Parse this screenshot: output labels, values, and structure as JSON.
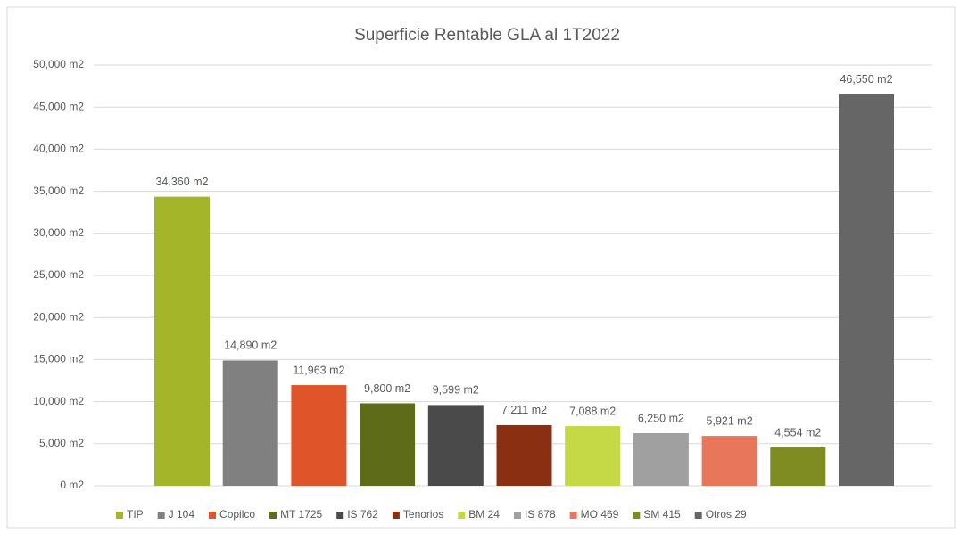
{
  "chart_data": {
    "type": "bar",
    "title": "Superficie Rentable GLA al 1T2022",
    "categories": [
      "TIP",
      "J 104",
      "Copilco",
      "MT 1725",
      "IS 762",
      "Tenorios",
      "BM 24",
      "IS 878",
      "MO 469",
      "SM 415",
      "Otros 29"
    ],
    "values": [
      34360,
      14890,
      11963,
      9800,
      9599,
      7211,
      7088,
      6250,
      5921,
      4554,
      46550
    ],
    "value_labels": [
      "34,360 m2",
      "14,890 m2",
      "11,963 m2",
      "9,800 m2",
      "9,599 m2",
      "7,211 m2",
      "7,088 m2",
      "6,250 m2",
      "5,921 m2",
      "4,554 m2",
      "46,550 m2"
    ],
    "colors": [
      "#a5b52a",
      "#808080",
      "#e0542a",
      "#5e6b18",
      "#4a4a4a",
      "#8b2f12",
      "#c5d946",
      "#a0a0a0",
      "#e8765a",
      "#7f8c22",
      "#666666"
    ],
    "ylim": [
      0,
      50000
    ],
    "yticks": [
      {
        "value": 0,
        "label": "0 m2"
      },
      {
        "value": 5000,
        "label": "5,000 m2"
      },
      {
        "value": 10000,
        "label": "10,000 m2"
      },
      {
        "value": 15000,
        "label": "15,000 m2"
      },
      {
        "value": 20000,
        "label": "20,000 m2"
      },
      {
        "value": 25000,
        "label": "25,000 m2"
      },
      {
        "value": 30000,
        "label": "30,000 m2"
      },
      {
        "value": 35000,
        "label": "35,000 m2"
      },
      {
        "value": 40000,
        "label": "40,000 m2"
      },
      {
        "value": 45000,
        "label": "45,000 m2"
      },
      {
        "value": 50000,
        "label": "50,000 m2"
      }
    ],
    "grid": true,
    "legend": "bottom"
  }
}
